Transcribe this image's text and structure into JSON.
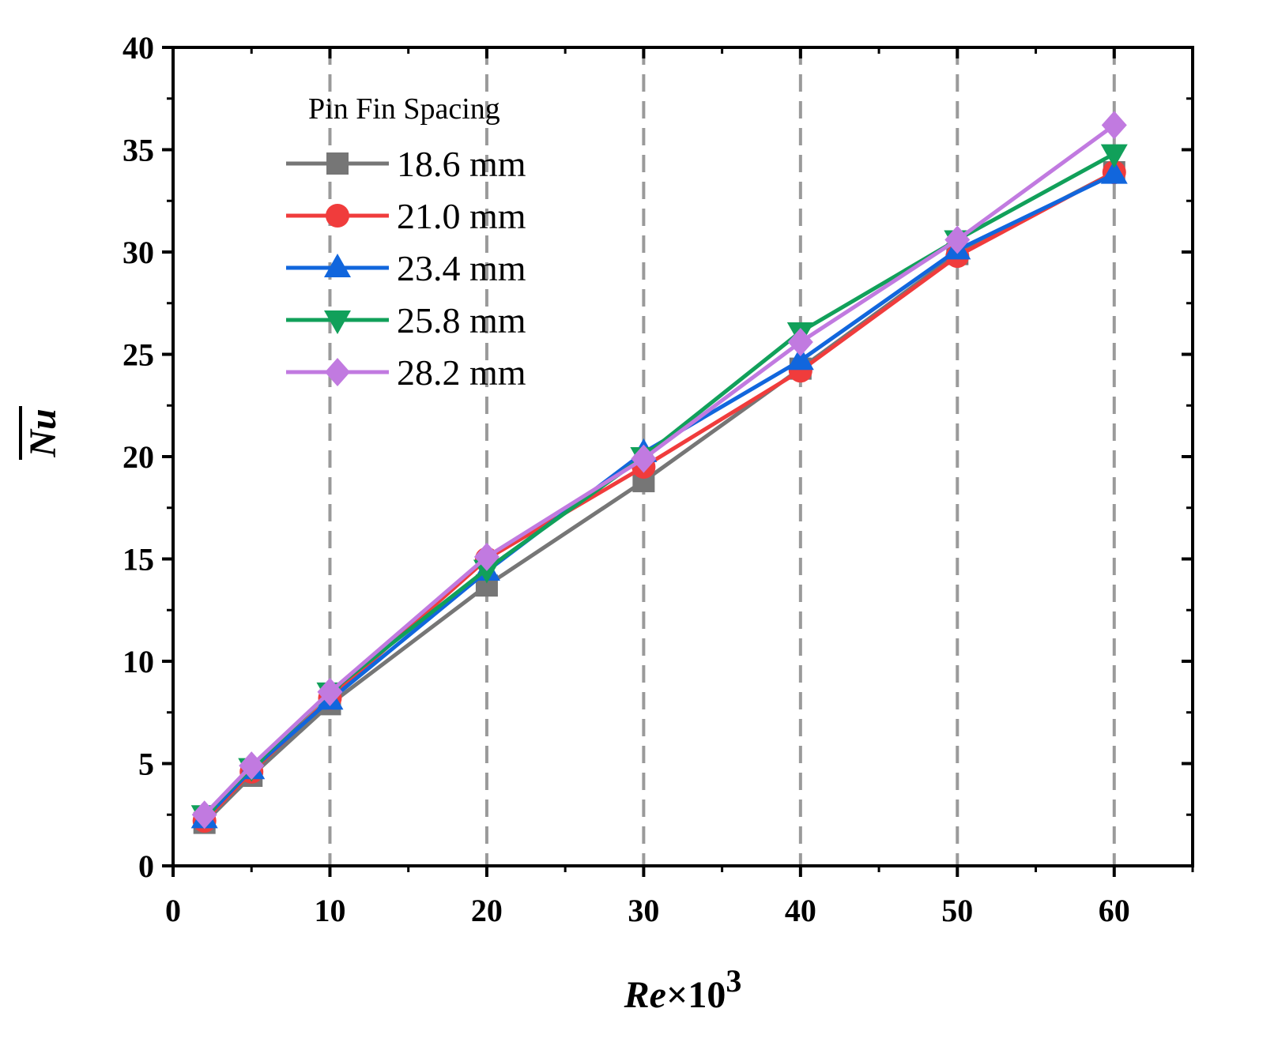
{
  "chart_data": {
    "type": "line",
    "title": "",
    "xlabel": {
      "italic": "Re",
      "plain": "×10",
      "sup": "3"
    },
    "ylabel": "Nu",
    "xlim": [
      0,
      65
    ],
    "ylim": [
      0,
      40
    ],
    "xticks": [
      0,
      10,
      20,
      30,
      40,
      50,
      60
    ],
    "xminor": [
      5,
      15,
      25,
      35,
      45,
      55,
      65
    ],
    "yticks": [
      0,
      5,
      10,
      15,
      20,
      25,
      30,
      35,
      40
    ],
    "yminor": [
      2.5,
      7.5,
      12.5,
      17.5,
      22.5,
      27.5,
      32.5,
      37.5
    ],
    "gridlines_x": [
      10,
      20,
      30,
      40,
      50,
      60
    ],
    "legend": {
      "title": "Pin Fin Spacing",
      "position": "top-left"
    },
    "x": [
      2,
      5,
      10,
      20,
      30,
      40,
      50,
      60
    ],
    "series": [
      {
        "name": "18.6 mm",
        "color": "#767676",
        "marker": "square",
        "values": [
          2.1,
          4.4,
          7.9,
          13.7,
          18.8,
          24.3,
          29.9,
          33.9
        ]
      },
      {
        "name": "21.0 mm",
        "color": "#f03c3c",
        "marker": "circle",
        "values": [
          2.2,
          4.6,
          8.2,
          15.0,
          19.5,
          24.2,
          29.8,
          33.9
        ]
      },
      {
        "name": "23.4 mm",
        "color": "#1166dd",
        "marker": "triangle-up",
        "values": [
          2.3,
          4.7,
          8.1,
          14.4,
          20.2,
          24.7,
          30.1,
          33.8
        ]
      },
      {
        "name": "25.8 mm",
        "color": "#11a05a",
        "marker": "triangle-down",
        "values": [
          2.5,
          4.8,
          8.5,
          14.5,
          20.0,
          26.1,
          30.6,
          34.8
        ]
      },
      {
        "name": "28.2 mm",
        "color": "#c17ae0",
        "marker": "diamond",
        "values": [
          2.5,
          4.9,
          8.5,
          15.1,
          19.9,
          25.6,
          30.6,
          36.2
        ]
      }
    ]
  }
}
